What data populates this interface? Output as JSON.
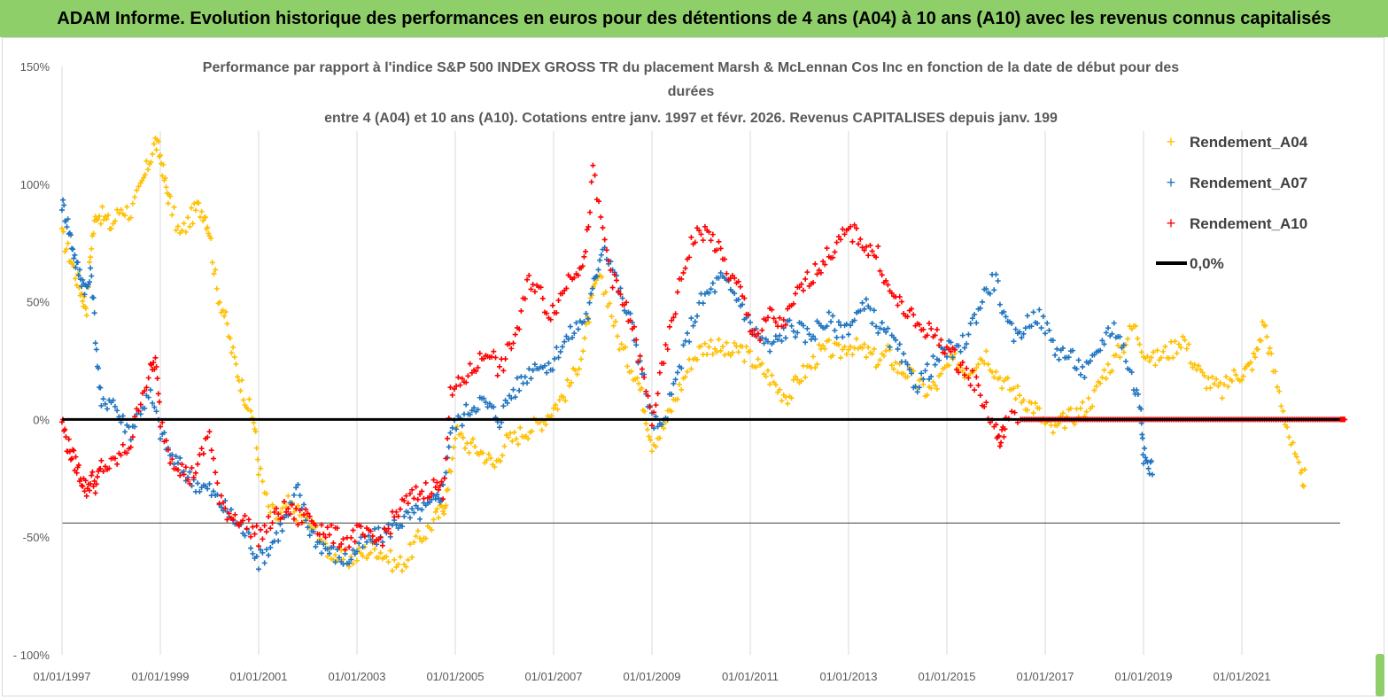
{
  "banner": {
    "title": "ADAM Informe. Evolution historique des performances en euros pour des détentions de 4 ans (A04) à 10 ans (A10) avec les revenus connus capitalisés"
  },
  "chart_data": {
    "type": "scatter",
    "title_lines": [
      "Performance par rapport à l'indice S&P 500 INDEX GROSS TR  du placement Marsh & McLennan Cos Inc en fonction de la date de début pour des",
      "durées",
      "entre 4 (A04) et 10 ans (A10).  Cotations entre janv. 1997 et févr. 2026. Revenus CAPITALISES depuis janv. 199"
    ],
    "xlabel": "",
    "ylabel": "",
    "xlim": [
      1997.0,
      2023.0
    ],
    "ylim": [
      -100,
      150
    ],
    "x_tick_labels": [
      "01/01/1997",
      "01/01/1999",
      "01/01/2001",
      "01/01/2003",
      "01/01/2005",
      "01/01/2007",
      "01/01/2009",
      "01/01/2011",
      "01/01/2013",
      "01/01/2015",
      "01/01/2017",
      "01/01/2019",
      "01/01/2021"
    ],
    "x_tick_values": [
      1997,
      1999,
      2001,
      2003,
      2005,
      2007,
      2009,
      2011,
      2013,
      2015,
      2017,
      2019,
      2021
    ],
    "y_tick_labels": [
      "150%",
      "100%",
      "50%",
      "0%",
      "-50%",
      "- 100%"
    ],
    "y_tick_values": [
      150,
      100,
      50,
      0,
      -50,
      -100
    ],
    "legend_position": "top-right",
    "series": [
      {
        "name": "Rendement_A04",
        "color": "#ffc000",
        "marker": "plus",
        "x": [
          1997.0,
          1997.15,
          1997.3,
          1997.42,
          1997.5,
          1997.6,
          1997.7,
          1997.85,
          1998.0,
          1998.2,
          1998.4,
          1998.6,
          1998.75,
          1998.9,
          1999.0,
          1999.1,
          1999.2,
          1999.4,
          1999.6,
          1999.75,
          1999.9,
          2000.0,
          2000.15,
          2000.3,
          2000.45,
          2000.6,
          2000.75,
          2000.9,
          2001.0,
          2001.2,
          2001.4,
          2001.6,
          2001.8,
          2002.0,
          2002.2,
          2002.4,
          2002.6,
          2002.8,
          2003.0,
          2003.2,
          2003.4,
          2003.6,
          2003.8,
          2004.0,
          2004.2,
          2004.4,
          2004.6,
          2004.75,
          2004.85,
          2005.0,
          2005.2,
          2005.4,
          2005.6,
          2005.8,
          2006.0,
          2006.2,
          2006.4,
          2006.6,
          2006.8,
          2007.0,
          2007.2,
          2007.4,
          2007.6,
          2007.75,
          2007.9,
          2008.1,
          2008.3,
          2008.5,
          2008.7,
          2008.85,
          2009.0,
          2009.2,
          2009.4,
          2009.6,
          2009.8,
          2010.0,
          2010.2,
          2010.4,
          2010.6,
          2010.8,
          2011.0,
          2011.2,
          2011.4,
          2011.6,
          2011.8,
          2012.0,
          2012.2,
          2012.4,
          2012.6,
          2012.8,
          2013.0,
          2013.2,
          2013.4,
          2013.6,
          2013.8,
          2014.0,
          2014.2,
          2014.4,
          2014.6,
          2014.8,
          2015.0,
          2015.2,
          2015.4,
          2015.6,
          2015.8,
          2016.0,
          2016.2,
          2016.4,
          2016.6,
          2016.8,
          2017.0,
          2017.2,
          2017.4,
          2017.6,
          2017.8,
          2018.0,
          2018.2,
          2018.4,
          2018.6,
          2018.8,
          2019.0,
          2019.2,
          2019.4,
          2019.6,
          2019.8,
          2020.0,
          2020.2,
          2020.4,
          2020.6,
          2020.8,
          2021.0,
          2021.15,
          2021.3,
          2021.45,
          2021.6,
          2021.8,
          2022.0,
          2022.2
        ],
        "y": [
          78,
          70,
          60,
          52,
          48,
          75,
          88,
          86,
          82,
          90,
          88,
          98,
          108,
          118,
          112,
          100,
          92,
          78,
          85,
          90,
          88,
          80,
          55,
          45,
          30,
          18,
          8,
          0,
          -20,
          -38,
          -42,
          -36,
          -40,
          -44,
          -48,
          -55,
          -58,
          -60,
          -58,
          -56,
          -55,
          -58,
          -62,
          -60,
          -52,
          -48,
          -42,
          -38,
          -30,
          -5,
          -10,
          -12,
          -15,
          -20,
          -10,
          -8,
          -5,
          -3,
          0,
          5,
          10,
          18,
          30,
          48,
          60,
          52,
          35,
          25,
          18,
          5,
          -10,
          -5,
          5,
          15,
          25,
          30,
          32,
          30,
          28,
          30,
          26,
          22,
          18,
          12,
          10,
          18,
          22,
          28,
          30,
          28,
          32,
          30,
          28,
          25,
          28,
          22,
          20,
          15,
          12,
          15,
          22,
          25,
          20,
          25,
          28,
          20,
          15,
          12,
          8,
          5,
          -2,
          -5,
          0,
          2,
          5,
          10,
          20,
          25,
          32,
          40,
          30,
          25,
          28,
          30,
          35,
          25,
          18,
          15,
          12,
          18,
          20,
          22,
          28,
          42,
          25,
          8,
          -10,
          -25
        ]
      },
      {
        "name": "Rendement_A07",
        "color": "#1f74c0",
        "marker": "plus",
        "x": [
          1997.0,
          1997.1,
          1997.2,
          1997.3,
          1997.4,
          1997.5,
          1997.6,
          1997.7,
          1997.8,
          1998.0,
          1998.2,
          1998.4,
          1998.6,
          1998.8,
          1999.0,
          1999.2,
          1999.4,
          1999.6,
          1999.8,
          2000.0,
          2000.2,
          2000.4,
          2000.6,
          2000.8,
          2001.0,
          2001.2,
          2001.4,
          2001.6,
          2001.8,
          2002.0,
          2002.2,
          2002.4,
          2002.6,
          2002.8,
          2003.0,
          2003.2,
          2003.4,
          2003.6,
          2003.8,
          2004.0,
          2004.2,
          2004.4,
          2004.6,
          2004.75,
          2004.9,
          2005.1,
          2005.3,
          2005.5,
          2005.7,
          2005.9,
          2006.1,
          2006.3,
          2006.5,
          2006.7,
          2006.9,
          2007.1,
          2007.3,
          2007.5,
          2007.7,
          2007.85,
          2008.0,
          2008.2,
          2008.4,
          2008.6,
          2008.8,
          2009.0,
          2009.2,
          2009.4,
          2009.6,
          2009.8,
          2010.0,
          2010.2,
          2010.4,
          2010.6,
          2010.8,
          2011.0,
          2011.2,
          2011.4,
          2011.6,
          2011.8,
          2012.0,
          2012.2,
          2012.4,
          2012.6,
          2012.8,
          2013.0,
          2013.2,
          2013.4,
          2013.6,
          2013.8,
          2014.0,
          2014.2,
          2014.4,
          2014.6,
          2014.8,
          2015.0,
          2015.2,
          2015.4,
          2015.6,
          2015.8,
          2016.0,
          2016.2,
          2016.4,
          2016.6,
          2016.8,
          2017.0,
          2017.2,
          2017.4,
          2017.6,
          2017.8,
          2018.0,
          2018.2,
          2018.4,
          2018.6,
          2018.8,
          2018.95,
          2019.0,
          2019.1
        ],
        "y": [
          92,
          85,
          75,
          65,
          60,
          55,
          62,
          30,
          5,
          10,
          0,
          -5,
          5,
          10,
          -5,
          -15,
          -20,
          -25,
          -28,
          -30,
          -35,
          -40,
          -45,
          -50,
          -60,
          -55,
          -48,
          -40,
          -30,
          -45,
          -52,
          -55,
          -58,
          -60,
          -55,
          -52,
          -50,
          -48,
          -44,
          -42,
          -40,
          -38,
          -35,
          -30,
          -5,
          0,
          5,
          8,
          5,
          0,
          10,
          15,
          20,
          25,
          20,
          30,
          35,
          40,
          45,
          60,
          75,
          65,
          50,
          40,
          20,
          0,
          -5,
          10,
          25,
          40,
          50,
          55,
          60,
          55,
          50,
          40,
          35,
          30,
          35,
          40,
          38,
          35,
          40,
          42,
          38,
          40,
          45,
          48,
          40,
          35,
          30,
          20,
          15,
          20,
          25,
          30,
          28,
          35,
          45,
          55,
          60,
          40,
          35,
          40,
          45,
          40,
          30,
          28,
          25,
          20,
          25,
          35,
          40,
          30,
          15,
          5,
          -15,
          -20
        ]
      },
      {
        "name": "Rendement_A10",
        "color": "#ff0000",
        "marker": "plus",
        "x": [
          1997.0,
          1997.1,
          1997.2,
          1997.3,
          1997.4,
          1997.5,
          1997.6,
          1997.7,
          1997.8,
          1998.0,
          1998.2,
          1998.4,
          1998.6,
          1998.8,
          1998.9,
          1999.0,
          1999.2,
          1999.4,
          1999.6,
          1999.8,
          2000.0,
          2000.2,
          2000.4,
          2000.6,
          2000.8,
          2001.0,
          2001.2,
          2001.4,
          2001.6,
          2001.8,
          2002.0,
          2002.2,
          2002.4,
          2002.6,
          2002.8,
          2003.0,
          2003.2,
          2003.4,
          2003.6,
          2003.8,
          2004.0,
          2004.2,
          2004.4,
          2004.6,
          2004.75,
          2004.9,
          2005.1,
          2005.3,
          2005.5,
          2005.7,
          2005.9,
          2006.1,
          2006.3,
          2006.5,
          2006.7,
          2006.9,
          2007.1,
          2007.3,
          2007.5,
          2007.65,
          2007.8,
          2008.0,
          2008.2,
          2008.4,
          2008.6,
          2008.8,
          2009.0,
          2009.2,
          2009.4,
          2009.6,
          2009.8,
          2010.0,
          2010.2,
          2010.4,
          2010.6,
          2010.8,
          2011.0,
          2011.2,
          2011.4,
          2011.6,
          2011.8,
          2012.0,
          2012.2,
          2012.4,
          2012.6,
          2012.8,
          2013.0,
          2013.2,
          2013.4,
          2013.6,
          2013.8,
          2014.0,
          2014.2,
          2014.4,
          2014.6,
          2014.8,
          2015.0,
          2015.2,
          2015.4,
          2015.6,
          2015.8,
          2016.0,
          2016.1,
          2016.2,
          2016.5,
          2017.0,
          2017.5,
          2018.0,
          2018.5,
          2019.0,
          2019.5,
          2020.0,
          2020.5,
          2021.0,
          2021.5,
          2022.0,
          2022.5,
          2023.0
        ],
        "y": [
          0,
          -10,
          -15,
          -20,
          -25,
          -30,
          -25,
          -28,
          -20,
          -20,
          -15,
          -10,
          10,
          20,
          25,
          0,
          -15,
          -20,
          -25,
          -18,
          -5,
          -35,
          -40,
          -42,
          -45,
          -50,
          -45,
          -40,
          -38,
          -42,
          -40,
          -45,
          -48,
          -50,
          -52,
          -48,
          -50,
          -52,
          -48,
          -40,
          -35,
          -32,
          -30,
          -28,
          -30,
          10,
          15,
          20,
          25,
          30,
          20,
          30,
          40,
          60,
          55,
          45,
          50,
          60,
          65,
          70,
          105,
          80,
          60,
          50,
          40,
          20,
          0,
          20,
          40,
          60,
          75,
          80,
          78,
          70,
          60,
          55,
          40,
          35,
          45,
          40,
          45,
          55,
          60,
          65,
          70,
          75,
          80,
          78,
          72,
          70,
          55,
          50,
          45,
          40,
          38,
          35,
          30,
          25,
          20,
          15,
          5,
          -5,
          -10,
          0,
          0,
          0,
          0,
          0,
          0,
          0,
          0,
          0,
          0,
          0,
          0,
          0,
          0,
          0
        ]
      }
    ],
    "reference_line": {
      "name": "0,0%",
      "value": 0,
      "color": "#000000"
    }
  }
}
